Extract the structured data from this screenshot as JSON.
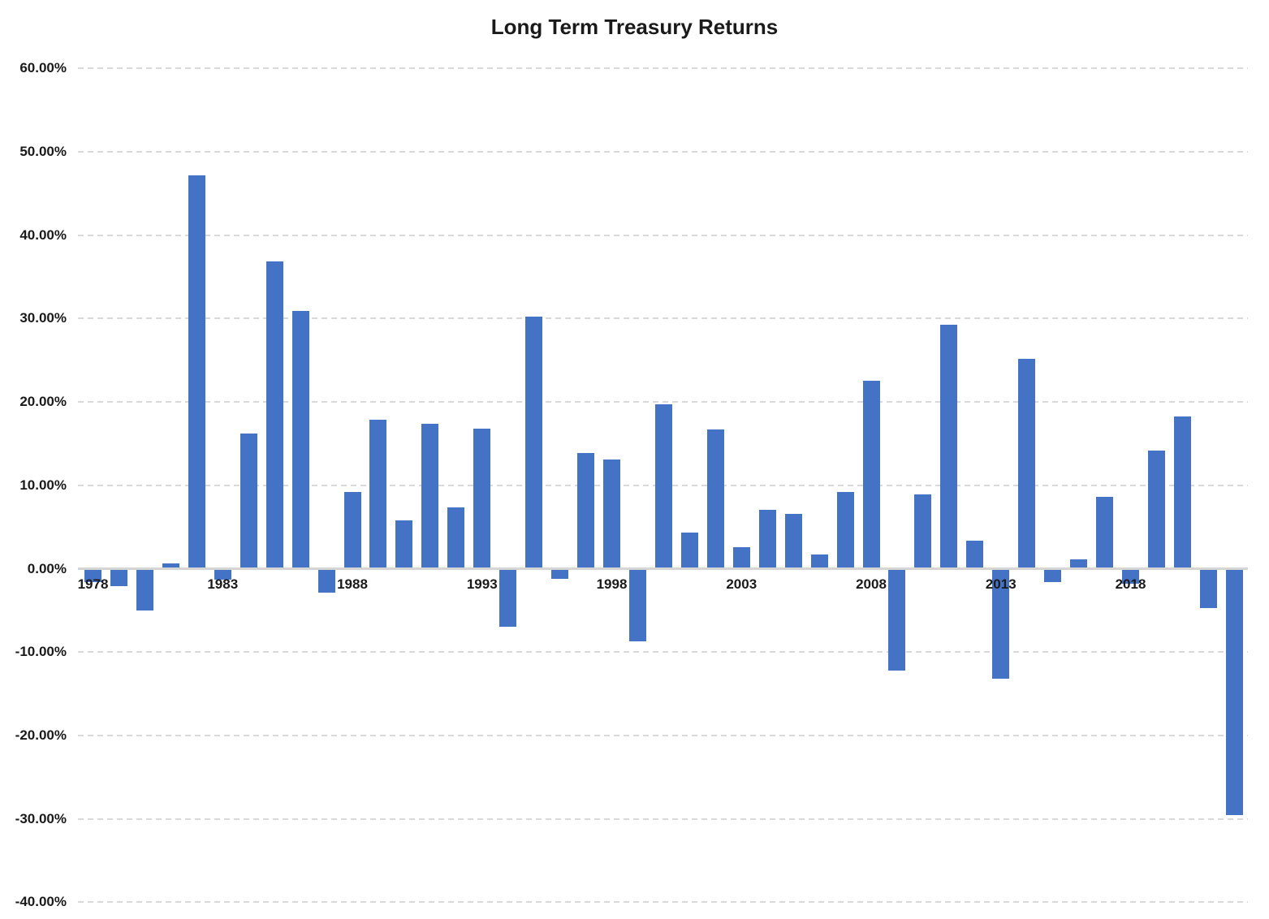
{
  "chart_data": {
    "type": "bar",
    "title": "Long Term Treasury Returns",
    "xlabel": "",
    "ylabel": "",
    "x": [
      1978,
      1979,
      1980,
      1981,
      1982,
      1983,
      1984,
      1985,
      1986,
      1987,
      1988,
      1989,
      1990,
      1991,
      1992,
      1993,
      1994,
      1995,
      1996,
      1997,
      1998,
      1999,
      2000,
      2001,
      2002,
      2003,
      2004,
      2005,
      2006,
      2007,
      2008,
      2009,
      2010,
      2011,
      2012,
      2013,
      2014,
      2015,
      2016,
      2017,
      2018,
      2019,
      2020,
      2021,
      2022
    ],
    "values": [
      -1.6,
      -2.1,
      -5.0,
      0.6,
      47.2,
      -1.3,
      16.2,
      36.9,
      30.9,
      -2.9,
      9.2,
      17.9,
      5.8,
      17.4,
      7.4,
      16.8,
      -7.0,
      30.2,
      -1.2,
      13.9,
      13.1,
      -8.7,
      19.7,
      4.3,
      16.7,
      2.6,
      7.1,
      6.6,
      1.7,
      9.2,
      22.5,
      -12.2,
      8.9,
      29.3,
      3.4,
      -13.2,
      25.2,
      -1.6,
      1.1,
      8.6,
      -1.8,
      14.2,
      18.3,
      -4.7,
      -29.6
    ],
    "value_unit": "percent",
    "ylim": [
      -40,
      60
    ],
    "yticks": [
      60,
      50,
      40,
      30,
      20,
      10,
      0,
      -10,
      -20,
      -30,
      -40
    ],
    "ytick_labels": [
      "60.00%",
      "50.00%",
      "40.00%",
      "30.00%",
      "20.00%",
      "10.00%",
      "0.00%",
      "-10.00%",
      "-20.00%",
      "-30.00%",
      "-40.00%"
    ],
    "xtick_labels": [
      "1978",
      "1983",
      "1988",
      "1993",
      "1998",
      "2003",
      "2008",
      "2013",
      "2018"
    ],
    "grid": "horizontal-dashed",
    "zero_axis": "solid",
    "legend": "none"
  },
  "colors": {
    "bar": "#4472C4",
    "gridline": "#D9D9D9",
    "zero_line": "#D5D5D5",
    "text": "#1A1A1A",
    "background": "#FFFFFF"
  }
}
